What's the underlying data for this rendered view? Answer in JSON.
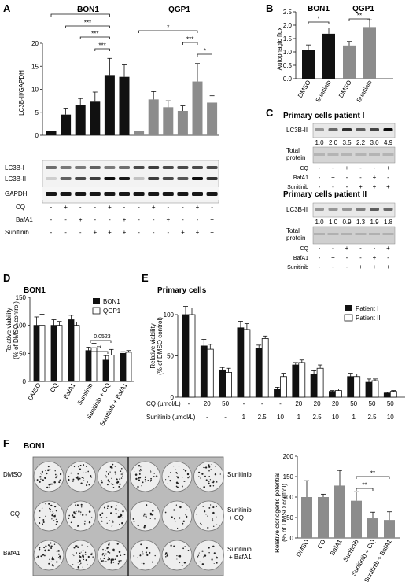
{
  "panels": {
    "A": "A",
    "B": "B",
    "C": "C",
    "D": "D",
    "E": "E",
    "F": "F"
  },
  "colors": {
    "black": "#111111",
    "grey": "#8c8c8c",
    "white": "#ffffff"
  },
  "A": {
    "titles": [
      "BON1",
      "QGP1"
    ],
    "ylabel": "LC3B-II/GAPDH",
    "blot_labels": [
      "LC3B-I",
      "LC3B-II",
      "GAPDH"
    ],
    "treat_labels": [
      "CQ",
      "BafA1",
      "Sunitinib"
    ],
    "treat_rows": [
      [
        "-",
        "+",
        "-",
        "-",
        "+",
        "-",
        "-",
        "+",
        "-",
        "-",
        "+",
        "-"
      ],
      [
        "-",
        "-",
        "+",
        "-",
        "-",
        "+",
        "-",
        "-",
        "+",
        "-",
        "-",
        "+"
      ],
      [
        "-",
        "-",
        "-",
        "+",
        "+",
        "+",
        "-",
        "-",
        "-",
        "+",
        "+",
        "+"
      ]
    ],
    "sig": [
      "***",
      "***",
      "***",
      "***",
      "*",
      "***",
      "*"
    ]
  },
  "B": {
    "titles": [
      "BON1",
      "QGP1"
    ],
    "ylabel": "Autophagic flux",
    "sig": [
      "*",
      "**"
    ]
  },
  "C": {
    "titles": [
      "Primary cells patient I",
      "Primary cells patient II"
    ],
    "blot_label": "LC3B-II",
    "total_label": [
      "Total",
      "protein"
    ],
    "values1": [
      "1.0",
      "2.0",
      "3.5",
      "2.2",
      "3.0",
      "4.9"
    ],
    "values2": [
      "1.0",
      "1.0",
      "0.9",
      "1.3",
      "1.9",
      "1.8"
    ],
    "treat_labels": [
      "CQ",
      "BafA1",
      "Sunitinib"
    ],
    "treat_rows": [
      [
        "-",
        "-",
        "+",
        "-",
        "-",
        "+"
      ],
      [
        "-",
        "+",
        "-",
        "-",
        "+",
        "-"
      ],
      [
        "-",
        "-",
        "-",
        "+",
        "+",
        "+"
      ]
    ]
  },
  "D": {
    "title": "BON1",
    "ylabel": [
      "Relative viability",
      "(% of DMSO control)"
    ],
    "legend": [
      "BON1",
      "QGP1"
    ],
    "sig": [
      "**"
    ],
    "pval": "0.0523"
  },
  "E": {
    "title": "Primary cells",
    "ylabel": [
      "Relative viability",
      "(% of DMSO control)"
    ],
    "legend": [
      "Patient I",
      "Patient II"
    ],
    "row_labels": [
      "CQ (µmol/L)",
      "Sunitinib (µmol/L)"
    ],
    "cq_row": [
      "-",
      "20",
      "50",
      "-",
      "-",
      "-",
      "20",
      "20",
      "20",
      "50",
      "50",
      "50"
    ],
    "su_row": [
      "-",
      "-",
      "-",
      "1",
      "2.5",
      "10",
      "1",
      "2.5",
      "10",
      "1",
      "2.5",
      "10"
    ]
  },
  "F": {
    "title": "BON1",
    "left_labels": [
      "DMSO",
      "CQ",
      "BafA1"
    ],
    "right_labels": [
      "Sunitinib",
      [
        "Sunitinib",
        "+ CQ"
      ],
      [
        "Sunitinib",
        "+ BafA1"
      ]
    ],
    "ylabel": [
      "Relative clonogenic potential",
      "(% of DMSO control)"
    ],
    "sig": [
      "**",
      "**"
    ]
  },
  "chart_data": [
    {
      "panel": "A",
      "type": "bar",
      "categories": [
        "1",
        "2",
        "3",
        "4",
        "5",
        "6",
        "7",
        "8",
        "9",
        "10",
        "11",
        "12"
      ],
      "values": [
        1.0,
        4.5,
        6.6,
        7.3,
        13.1,
        12.7,
        1.0,
        7.8,
        6.1,
        5.3,
        11.7,
        7.1
      ],
      "errors": [
        0,
        1.4,
        1.4,
        2.1,
        3.6,
        2.6,
        0,
        1.7,
        1.4,
        1.1,
        3.9,
        1.5
      ],
      "ylabel": "LC3B-II/GAPDH",
      "ylim": [
        0,
        20
      ],
      "yticks": [
        0,
        5,
        10,
        15,
        20
      ]
    },
    {
      "panel": "B",
      "type": "bar",
      "categories": [
        "DMSO",
        "Sunitinib",
        "DMSO",
        "Sunitinib"
      ],
      "values": [
        1.08,
        1.68,
        1.24,
        1.93
      ],
      "errors": [
        0.18,
        0.22,
        0.15,
        0.27
      ],
      "ylabel": "Autophagic flux",
      "ylim": [
        0,
        2.5
      ],
      "yticks": [
        0.0,
        0.5,
        1.0,
        1.5,
        2.0,
        2.5
      ]
    },
    {
      "panel": "D",
      "type": "bar",
      "categories": [
        "DMSO",
        "CQ",
        "BafA1",
        "Sunitinib",
        "Sunitinib + CQ",
        "Sunitinib + BafA1"
      ],
      "series": [
        {
          "name": "BON1",
          "values": [
            100,
            100,
            110,
            55,
            38,
            50
          ],
          "errors": [
            15,
            10,
            8,
            6,
            8,
            3
          ]
        },
        {
          "name": "QGP1",
          "values": [
            100,
            100,
            100,
            60,
            47,
            52
          ],
          "errors": [
            20,
            7,
            6,
            8,
            10,
            3
          ]
        }
      ],
      "ylabel": "Relative viability (% of DMSO control)",
      "ylim": [
        0,
        150
      ],
      "yticks": [
        0,
        50,
        100,
        150
      ]
    },
    {
      "panel": "E",
      "type": "bar",
      "categories": [
        "1",
        "2",
        "3",
        "4",
        "5",
        "6",
        "7",
        "8",
        "9",
        "10",
        "11",
        "12"
      ],
      "series": [
        {
          "name": "Patient I",
          "values": [
            100,
            62,
            33,
            84,
            59,
            10,
            39,
            28,
            7,
            25,
            18,
            5
          ],
          "errors": [
            10,
            8,
            3,
            8,
            4,
            2,
            3,
            4,
            1,
            4,
            4,
            1
          ]
        },
        {
          "name": "Patient II",
          "values": [
            100,
            58,
            30,
            82,
            71,
            25,
            42,
            35,
            8,
            25,
            20,
            7
          ],
          "errors": [
            8,
            6,
            5,
            7,
            3,
            4,
            3,
            4,
            2,
            3,
            2,
            1
          ]
        }
      ],
      "ylabel": "Relative viability (% of DMSO control)",
      "ylim": [
        0,
        100
      ],
      "yticks": [
        0,
        50,
        100
      ]
    },
    {
      "panel": "F",
      "type": "bar",
      "categories": [
        "DMSO",
        "CQ",
        "BafA1",
        "Sunitinib",
        "Sunitinib + CQ",
        "Sunitinib + BafA1"
      ],
      "values": [
        100,
        100,
        128,
        91,
        48,
        44
      ],
      "errors": [
        40,
        7,
        37,
        22,
        15,
        20
      ],
      "ylabel": "Relative clonogenic potential (% of DMSO control)",
      "ylim": [
        0,
        200
      ],
      "yticks": [
        0,
        50,
        100,
        150,
        200
      ]
    }
  ]
}
